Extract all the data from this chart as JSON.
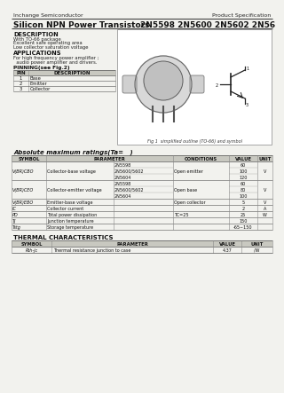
{
  "company": "Inchange Semiconductor",
  "doc_type": "Product Specification",
  "title": "Silicon NPN Power Transistors",
  "part_numbers": "2N5598 2N5600 2N5602 2N5604",
  "description_title": "DESCRIPTION",
  "description_lines": [
    "With TO-66 package",
    "Excellent safe operating area",
    "Low collector saturation voltage"
  ],
  "applications_title": "APPLICATIONS",
  "applications_lines": [
    "For high frequency power amplifier ;",
    "  audio power amplifier and drivers."
  ],
  "pinning_title": "PINNING(see Fig.2)",
  "pin_headers": [
    "PIN",
    "DESCRIPTION"
  ],
  "pin_rows": [
    [
      "1",
      "Base"
    ],
    [
      "2",
      "Emitter"
    ],
    [
      "3",
      "Collector"
    ]
  ],
  "fig_caption": "Fig 1  simplified outline (TO-66) and symbol",
  "abs_max_title": "Absolute maximum ratings(Ta=   )",
  "abs_headers": [
    "SYMBOL",
    "PARAMETER",
    "CONDITIONS",
    "VALUE",
    "UNIT"
  ],
  "thermal_title": "THERMAL CHARACTERISTICS",
  "thermal_headers": [
    "SYMBOL",
    "PARAMETER",
    "VALUE",
    "UNIT"
  ],
  "thermal_rows": [
    [
      "Rth-jc",
      "Thermal resistance junction to case",
      "4.37",
      "/W"
    ]
  ],
  "bg_color": "#f2f2ee",
  "table_header_bg": "#c8c8c0",
  "text_color": "#111111"
}
